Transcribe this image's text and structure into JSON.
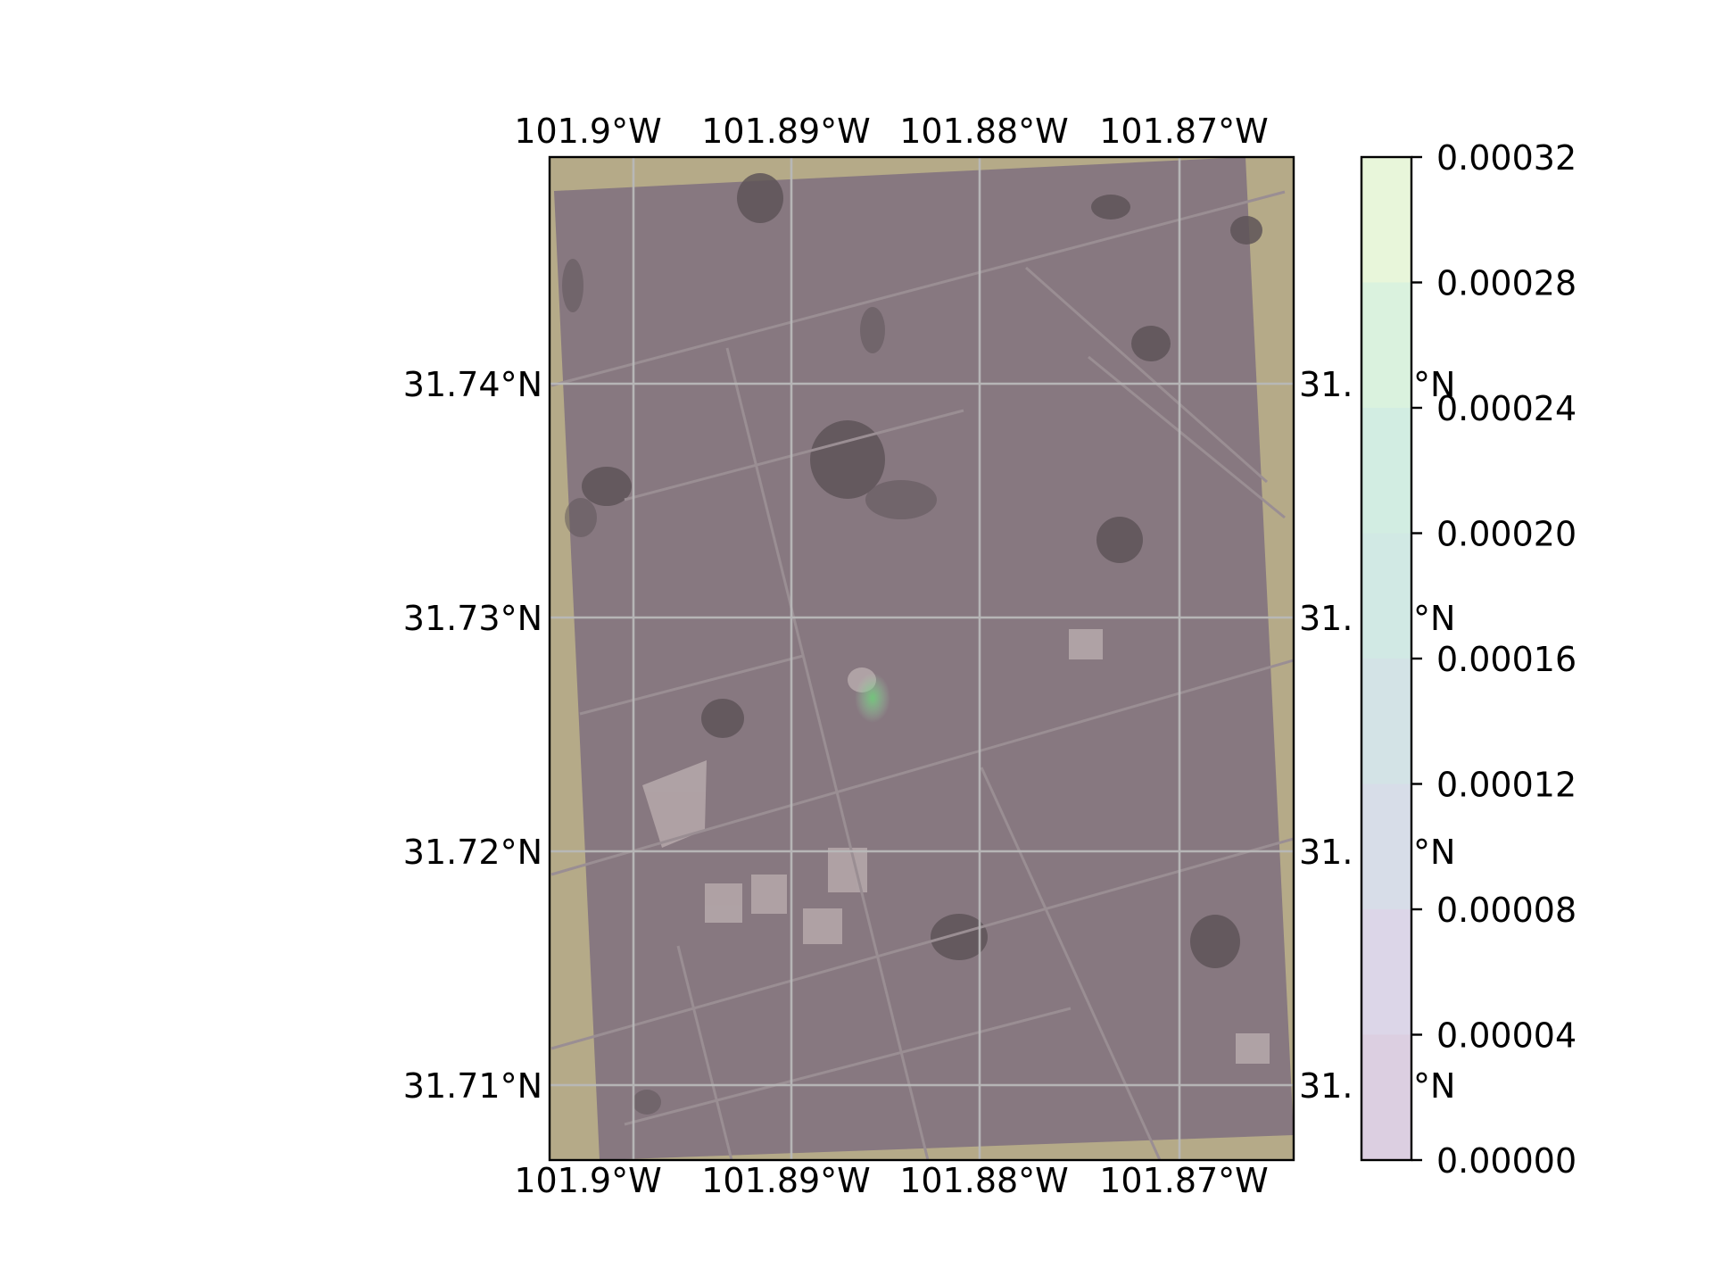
{
  "map": {
    "lon_ticks": [
      "101.9°W",
      "101.89°W",
      "101.88°W",
      "101.87°W"
    ],
    "lat_ticks": [
      "31.74°N",
      "31.73°N",
      "31.72°N",
      "31.71°N"
    ],
    "lat_ticks_right": [
      "31.",
      "31.",
      "31.",
      "31."
    ],
    "lat_ticks_right_suffix": [
      "°N",
      "°N",
      "°N",
      "°N"
    ],
    "gridlines": true,
    "basemap": "satellite imagery",
    "overlay_tint_color": "#8a7a84"
  },
  "colorbar": {
    "ticks": [
      "0.00000",
      "0.00004",
      "0.00008",
      "0.00012",
      "0.00016",
      "0.00020",
      "0.00024",
      "0.00028",
      "0.00032"
    ],
    "bands": [
      "#dccfe1",
      "#dcd6e8",
      "#d7dde8",
      "#d3e3e6",
      "#d1e9e4",
      "#d2ede2",
      "#daf2de",
      "#e8f6da",
      "#f6f9d3"
    ],
    "range": [
      0,
      0.00032
    ]
  }
}
